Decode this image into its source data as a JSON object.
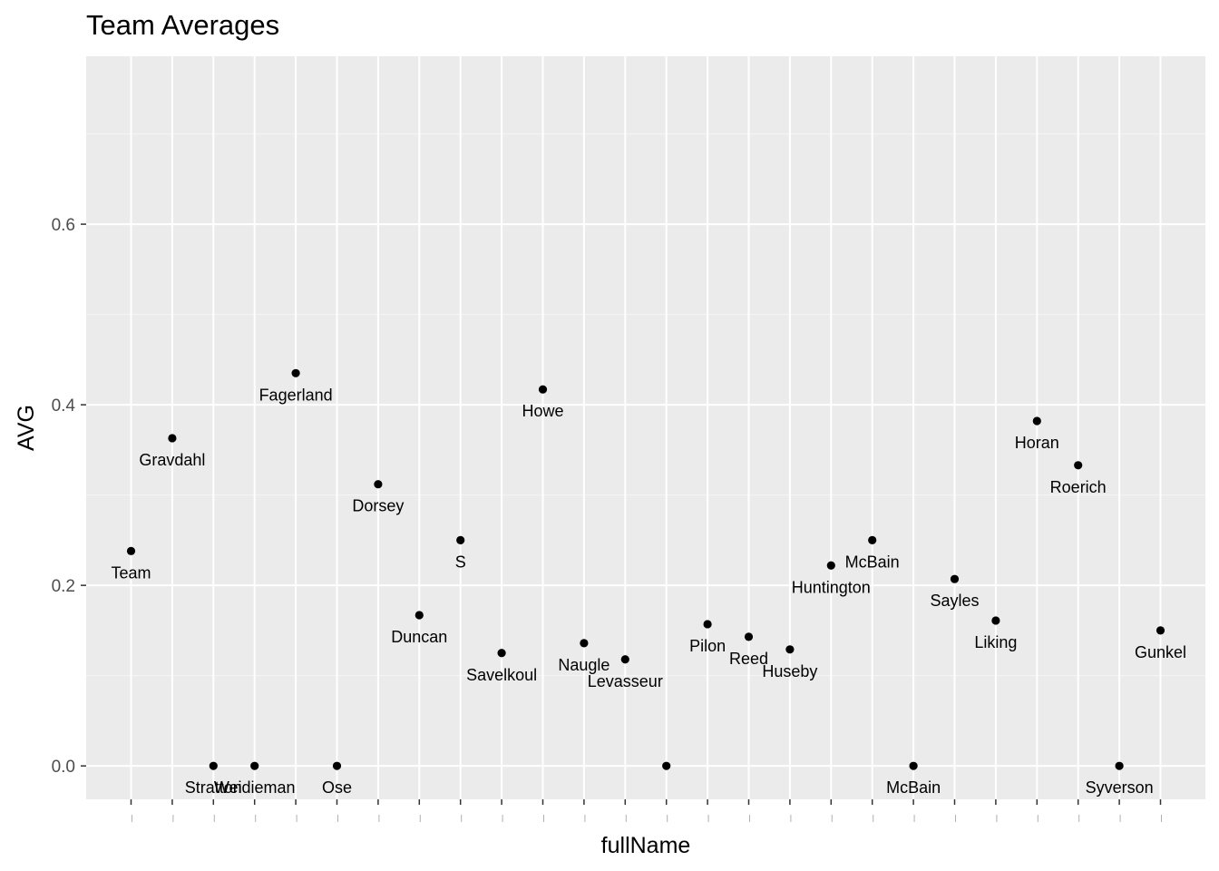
{
  "chart_data": {
    "type": "scatter",
    "title": "Team Averages",
    "xlabel": "fullName",
    "ylabel": "AVG",
    "ylim": [
      -0.037,
      0.786
    ],
    "yticks": [
      0.0,
      0.2,
      0.4,
      0.6
    ],
    "ytick_labels": [
      "0.0",
      "0.2",
      "0.4",
      "0.6"
    ],
    "grid": true,
    "colors": {
      "panel": "#ebebeb",
      "grid": "#ffffff",
      "point": "#000000",
      "axis_text": "#4d4d4d"
    },
    "points": [
      {
        "label": "Team",
        "y": 0.238
      },
      {
        "label": "Gravdahl",
        "y": 0.363
      },
      {
        "label": "Stratton",
        "y": 0.0
      },
      {
        "label": "Weidieman",
        "y": 0.0
      },
      {
        "label": "Fagerland",
        "y": 0.435
      },
      {
        "label": "Ose",
        "y": 0.0
      },
      {
        "label": "Dorsey",
        "y": 0.312
      },
      {
        "label": "Duncan",
        "y": 0.167
      },
      {
        "label": "S",
        "y": 0.25
      },
      {
        "label": "Savelkoul",
        "y": 0.125
      },
      {
        "label": "Howe",
        "y": 0.417
      },
      {
        "label": "Naugle",
        "y": 0.136
      },
      {
        "label": "Levasseur",
        "y": 0.118
      },
      {
        "label": "",
        "y": 0.0
      },
      {
        "label": "Pilon",
        "y": 0.157
      },
      {
        "label": "Reed",
        "y": 0.143
      },
      {
        "label": "Huseby",
        "y": 0.129
      },
      {
        "label": "Huntington",
        "y": 0.222
      },
      {
        "label": "McBain",
        "y": 0.25
      },
      {
        "label": "McBain",
        "y": 0.0
      },
      {
        "label": "Sayles",
        "y": 0.207
      },
      {
        "label": "Liking",
        "y": 0.161
      },
      {
        "label": "Horan",
        "y": 0.382
      },
      {
        "label": "Roerich",
        "y": 0.333
      },
      {
        "label": "Syverson",
        "y": 0.0
      },
      {
        "label": "Gunkel",
        "y": 0.15
      }
    ]
  }
}
